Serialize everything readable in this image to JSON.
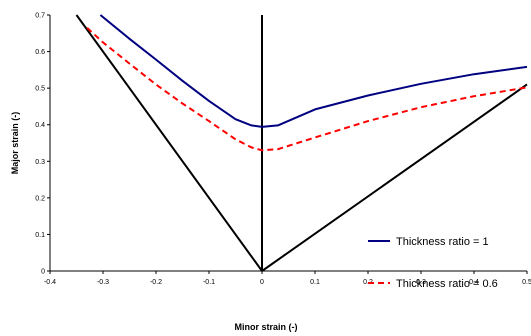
{
  "chart_data": {
    "type": "line",
    "title": "",
    "xlabel": "Minor strain (-)",
    "ylabel": "Major strain (-)",
    "xlim": [
      -0.4,
      0.5
    ],
    "ylim": [
      0,
      0.7
    ],
    "x_ticks": [
      "-0.4",
      "-0.3",
      "-0.2",
      "-0.1",
      "0",
      "0.1",
      "0.2",
      "0.3",
      "0.4",
      "0.5"
    ],
    "y_ticks": [
      "0",
      "0.1",
      "0.2",
      "0.3",
      "0.4",
      "0.5",
      "0.6",
      "0.7"
    ],
    "grid": false,
    "legend_position": "bottom-right",
    "series": [
      {
        "name": "Thickness ratio =  1",
        "color": "#000080",
        "dash": "solid",
        "x": [
          -0.305,
          -0.25,
          -0.2,
          -0.15,
          -0.1,
          -0.05,
          -0.02,
          0,
          0.03,
          0.1,
          0.2,
          0.3,
          0.4,
          0.5
        ],
        "y": [
          0.7,
          0.635,
          0.578,
          0.52,
          0.465,
          0.415,
          0.398,
          0.394,
          0.398,
          0.442,
          0.48,
          0.512,
          0.538,
          0.558
        ]
      },
      {
        "name": "Thickness ratio = 0.6",
        "color": "#ff0000",
        "dash": "dashed",
        "x": [
          -0.33,
          -0.3,
          -0.25,
          -0.2,
          -0.15,
          -0.1,
          -0.05,
          -0.02,
          0,
          0.03,
          0.1,
          0.2,
          0.3,
          0.4,
          0.5
        ],
        "y": [
          0.665,
          0.625,
          0.567,
          0.51,
          0.458,
          0.41,
          0.36,
          0.338,
          0.33,
          0.333,
          0.365,
          0.41,
          0.448,
          0.478,
          0.502
        ]
      }
    ],
    "reference_lines": [
      {
        "color": "#000000",
        "x": [
          -0.35,
          0
        ],
        "y": [
          0.7,
          0
        ]
      },
      {
        "color": "#000000",
        "x": [
          0,
          0.5
        ],
        "y": [
          0,
          0.51
        ]
      },
      {
        "color": "#000000",
        "x": [
          0,
          0
        ],
        "y": [
          0,
          0.7
        ]
      }
    ]
  }
}
